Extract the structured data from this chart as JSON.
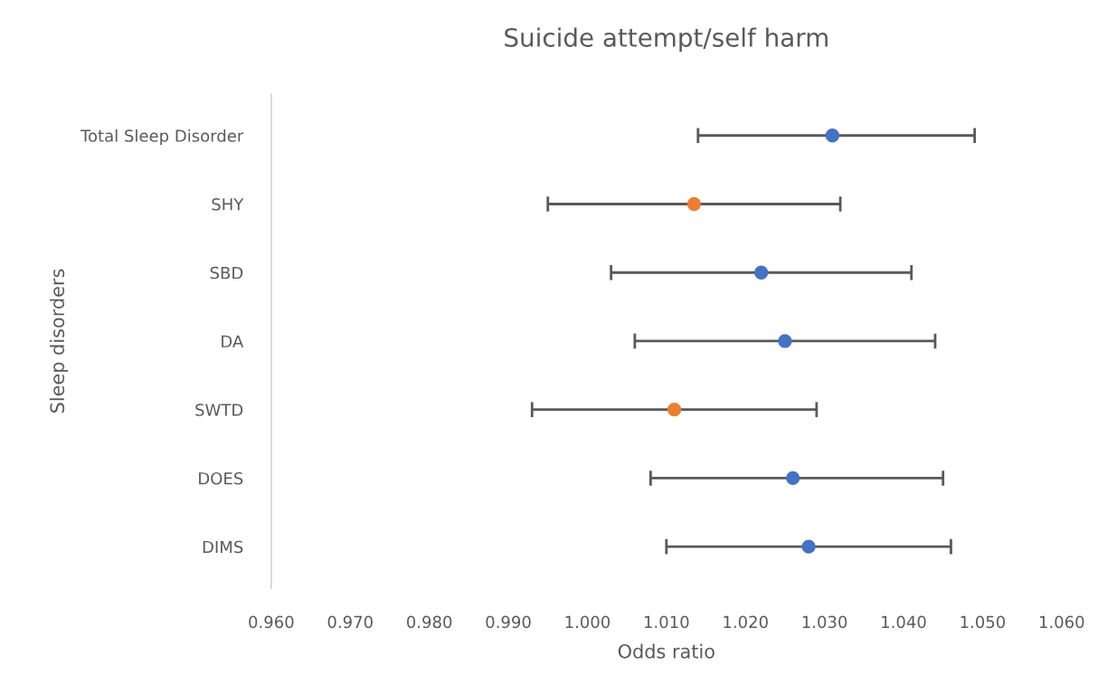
{
  "chart_data": {
    "type": "scatter",
    "orientation": "horizontal",
    "title": "Suicide attempt/self harm",
    "xlabel": "Odds ratio",
    "ylabel": "Sleep disorders",
    "categories": [
      "Total Sleep Disorder",
      "SHY",
      "SBD",
      "DA",
      "SWTD",
      "DOES",
      "DIMS"
    ],
    "xlim": [
      0.96,
      1.06
    ],
    "xticks": [
      {
        "value": 0.96,
        "label": "0.960"
      },
      {
        "value": 0.97,
        "label": "0.970"
      },
      {
        "value": 0.98,
        "label": "0.980"
      },
      {
        "value": 0.99,
        "label": "0.990"
      },
      {
        "value": 1.0,
        "label": "1.000"
      },
      {
        "value": 1.01,
        "label": "1.010"
      },
      {
        "value": 1.02,
        "label": "1.020"
      },
      {
        "value": 1.03,
        "label": "1.030"
      },
      {
        "value": 1.04,
        "label": "1.040"
      },
      {
        "value": 1.05,
        "label": "1.050"
      },
      {
        "value": 1.06,
        "label": "1.060"
      }
    ],
    "marker": "circle",
    "series": [
      {
        "color": "#4472c4",
        "values": [
          1.031,
          null,
          1.022,
          1.025,
          null,
          1.026,
          1.028
        ],
        "errors": [
          [
            1.014,
            1.049
          ],
          null,
          [
            1.003,
            1.041
          ],
          [
            1.006,
            1.044
          ],
          null,
          [
            1.008,
            1.045
          ],
          [
            1.01,
            1.046
          ]
        ]
      },
      {
        "color": "#ed7d31",
        "values": [
          null,
          1.0135,
          null,
          null,
          1.011,
          null,
          null
        ],
        "errors": [
          null,
          [
            0.995,
            1.032
          ],
          null,
          null,
          [
            0.993,
            1.029
          ],
          null,
          null
        ]
      }
    ]
  }
}
